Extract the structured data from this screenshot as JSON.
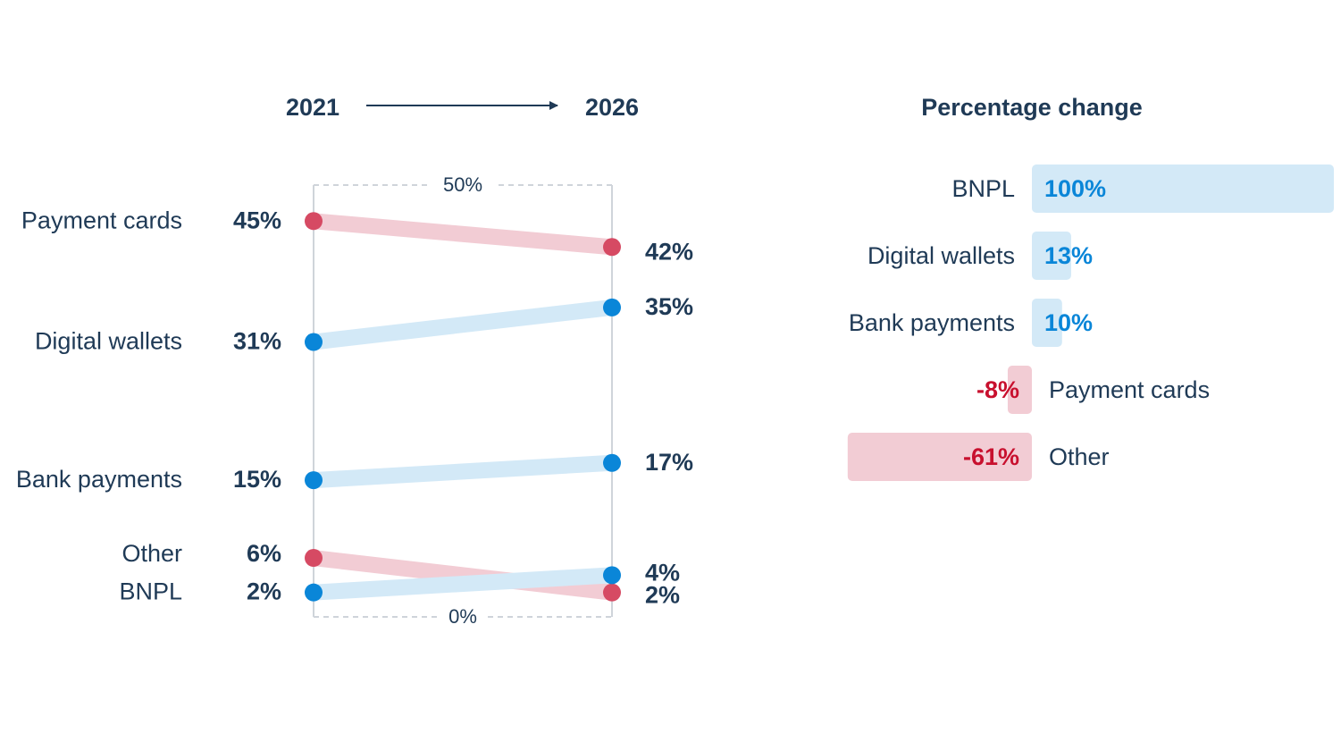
{
  "colors": {
    "text": "#1f3a56",
    "decline": "#d64a63",
    "decline_light": "#f2ccd4",
    "growth": "#0a86d8",
    "growth_light": "#d3e9f7",
    "change_text_pos": "#0a86d8",
    "change_text_neg": "#c8102e",
    "axis": "#cfd4da"
  },
  "chart_data": [
    {
      "type": "slope",
      "start_label": "2021",
      "end_label": "2026",
      "y_range": [
        0,
        50
      ],
      "range_labels": {
        "top": "50%",
        "bottom": "0%"
      },
      "series": [
        {
          "name": "Payment cards",
          "start": 45,
          "end": 42,
          "start_label": "45%",
          "end_label": "42%",
          "trend": "down"
        },
        {
          "name": "Digital wallets",
          "start": 31,
          "end": 35,
          "start_label": "31%",
          "end_label": "35%",
          "trend": "up"
        },
        {
          "name": "Bank payments",
          "start": 15,
          "end": 17,
          "start_label": "15%",
          "end_label": "17%",
          "trend": "up"
        },
        {
          "name": "Other",
          "start": 6,
          "end": 2,
          "start_label": "6%",
          "end_label": "2%",
          "trend": "down"
        },
        {
          "name": "BNPL",
          "start": 2,
          "end": 4,
          "start_label": "2%",
          "end_label": "4%",
          "trend": "up"
        }
      ]
    },
    {
      "type": "bar",
      "orientation": "horizontal",
      "title": "Percentage change",
      "categories": [
        "BNPL",
        "Digital wallets",
        "Bank payments",
        "Payment cards",
        "Other"
      ],
      "values": [
        100,
        13,
        10,
        -8,
        -61
      ],
      "value_labels": [
        "100%",
        "13%",
        "10%",
        "-8%",
        "-61%"
      ]
    }
  ]
}
